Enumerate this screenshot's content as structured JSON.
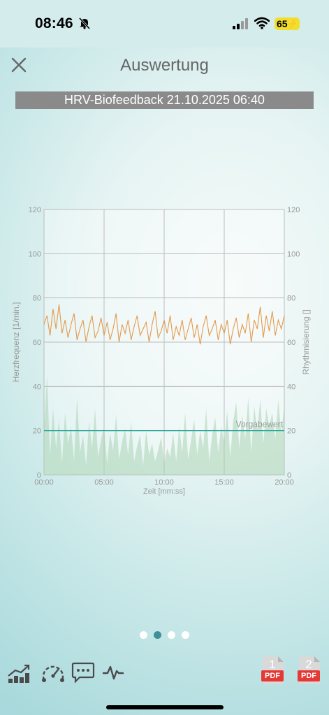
{
  "status_bar": {
    "time": "08:46",
    "battery": "65",
    "icons": [
      "bell-slash-icon",
      "signal-icon",
      "wifi-icon",
      "battery-charging-icon"
    ]
  },
  "header": {
    "title": "Auswertung",
    "close_icon": "close-icon"
  },
  "session_banner": "HRV-Biofeedback 21.10.2025 06:40",
  "chart_data": {
    "type": "line",
    "xlabel": "Zeit [mm:ss]",
    "ylabel": "Herzfrequenz [1/min.]",
    "y2label": "Rhythmisierung []",
    "x_ticks": [
      "00:00",
      "05:00",
      "10:00",
      "15:00",
      "20:00"
    ],
    "y_ticks": [
      "0",
      "20",
      "40",
      "60",
      "80",
      "100",
      "120"
    ],
    "y2_ticks": [
      "0",
      "20",
      "40",
      "60",
      "80",
      "100",
      "120"
    ],
    "xlim_minutes": [
      0,
      20
    ],
    "ylim": [
      0,
      120
    ],
    "y2lim": [
      0,
      120
    ],
    "grid": true,
    "target_line": {
      "label": "Vorgabewert",
      "value": 20,
      "color": "#2aa89c"
    },
    "series": [
      {
        "axis": "left",
        "style": "line",
        "color": "#e39a4c",
        "x": [
          0,
          0.25,
          0.5,
          0.75,
          1,
          1.25,
          1.5,
          1.75,
          2,
          2.25,
          2.5,
          2.75,
          3,
          3.25,
          3.5,
          3.75,
          4,
          4.25,
          4.5,
          4.75,
          5,
          5.25,
          5.5,
          5.75,
          6,
          6.25,
          6.5,
          6.75,
          7,
          7.25,
          7.5,
          7.75,
          8,
          8.25,
          8.5,
          8.75,
          9,
          9.25,
          9.5,
          9.75,
          10,
          10.25,
          10.5,
          10.75,
          11,
          11.25,
          11.5,
          11.75,
          12,
          12.25,
          12.5,
          12.75,
          13,
          13.25,
          13.5,
          13.75,
          14,
          14.25,
          14.5,
          14.75,
          15,
          15.25,
          15.5,
          15.75,
          16,
          16.25,
          16.5,
          16.75,
          17,
          17.25,
          17.5,
          17.75,
          18,
          18.25,
          18.5,
          18.75,
          19,
          19.25,
          19.5,
          19.75,
          20
        ],
        "values": [
          68,
          72,
          63,
          75,
          66,
          77,
          64,
          70,
          62,
          68,
          73,
          61,
          66,
          70,
          60,
          67,
          72,
          62,
          65,
          71,
          63,
          69,
          61,
          66,
          73,
          60,
          68,
          64,
          70,
          61,
          67,
          72,
          63,
          66,
          69,
          60,
          68,
          74,
          62,
          65,
          70,
          64,
          72,
          61,
          67,
          63,
          70,
          61,
          66,
          71,
          62,
          68,
          59,
          67,
          72,
          63,
          66,
          70,
          61,
          68,
          64,
          70,
          59,
          66,
          71,
          62,
          68,
          64,
          73,
          60,
          70,
          66,
          76,
          62,
          72,
          65,
          74,
          63,
          70,
          66,
          72
        ]
      },
      {
        "axis": "right",
        "style": "area",
        "color": "#a9d3b3",
        "x": [
          0,
          0.25,
          0.5,
          0.75,
          1,
          1.25,
          1.5,
          1.75,
          2,
          2.25,
          2.5,
          2.75,
          3,
          3.25,
          3.5,
          3.75,
          4,
          4.25,
          4.5,
          4.75,
          5,
          5.25,
          5.5,
          5.75,
          6,
          6.25,
          6.5,
          6.75,
          7,
          7.25,
          7.5,
          7.75,
          8,
          8.25,
          8.5,
          8.75,
          9,
          9.25,
          9.5,
          9.75,
          10,
          10.25,
          10.5,
          10.75,
          11,
          11.25,
          11.5,
          11.75,
          12,
          12.25,
          12.5,
          12.75,
          13,
          13.25,
          13.5,
          13.75,
          14,
          14.25,
          14.5,
          14.75,
          15,
          15.25,
          15.5,
          15.75,
          16,
          16.25,
          16.5,
          16.75,
          17,
          17.25,
          17.5,
          17.75,
          18,
          18.25,
          18.5,
          18.75,
          19,
          19.25,
          19.5,
          19.75,
          20
        ],
        "values": [
          20,
          45,
          8,
          30,
          12,
          25,
          5,
          28,
          14,
          22,
          6,
          35,
          10,
          18,
          4,
          24,
          12,
          30,
          8,
          16,
          22,
          5,
          19,
          11,
          27,
          7,
          15,
          21,
          9,
          24,
          6,
          13,
          18,
          4,
          20,
          9,
          14,
          6,
          11,
          17,
          5,
          12,
          8,
          19,
          6,
          22,
          10,
          28,
          7,
          16,
          25,
          9,
          20,
          12,
          30,
          6,
          18,
          26,
          10,
          22,
          14,
          29,
          8,
          24,
          33,
          12,
          27,
          16,
          35,
          10,
          31,
          20,
          34,
          14,
          30,
          22,
          28,
          16,
          34,
          18,
          32
        ]
      }
    ]
  },
  "page_indicator": {
    "count": 4,
    "active_index": 1
  },
  "toolbar": {
    "items": [
      "trend-chart-icon",
      "gauge-icon",
      "comment-icon",
      "heartbeat-icon"
    ]
  },
  "pdf_buttons": [
    {
      "number": "1",
      "label": "PDF"
    },
    {
      "number": "2",
      "label": "PDF"
    }
  ]
}
